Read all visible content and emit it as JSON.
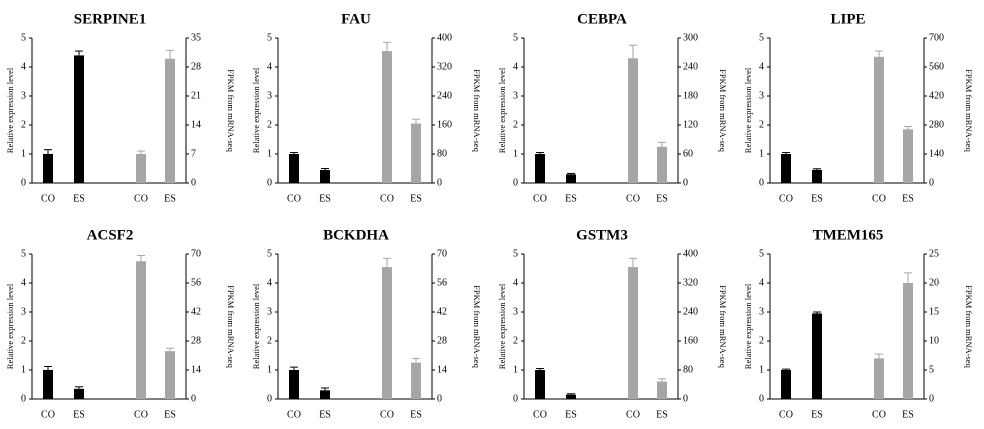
{
  "chart_data": [
    {
      "type": "bar",
      "title": "SERPINE1",
      "categories": [
        "CO",
        "ES",
        "CO",
        "ES"
      ],
      "ylabel": "Relative expression level",
      "y2label": "FPKM from mRNA-seq",
      "series": [
        {
          "color": "#000000",
          "values": [
            1.0,
            4.4,
            null,
            null
          ],
          "errors": [
            0.15,
            0.15,
            null,
            null
          ]
        },
        {
          "color": "#a6a6a6",
          "axis": "y2",
          "values": [
            null,
            null,
            7,
            30
          ],
          "errors": [
            null,
            null,
            0.7,
            2
          ]
        }
      ],
      "ylim": [
        0,
        5
      ],
      "yticks": [
        0,
        1,
        2,
        3,
        4,
        5
      ],
      "y2lim": [
        0,
        35
      ],
      "y2ticks": [
        0,
        7,
        14,
        21,
        28,
        35
      ]
    },
    {
      "type": "bar",
      "title": "FAU",
      "categories": [
        "CO",
        "ES",
        "CO",
        "ES"
      ],
      "ylabel": "Relative expression level",
      "y2label": "FPKM from mRNA-seq",
      "series": [
        {
          "color": "#000000",
          "values": [
            1.0,
            0.45,
            null,
            null
          ],
          "errors": [
            0.05,
            0.05,
            null,
            null
          ]
        },
        {
          "color": "#a6a6a6",
          "axis": "y2",
          "values": [
            null,
            null,
            364,
            164
          ],
          "errors": [
            null,
            null,
            24,
            12
          ]
        }
      ],
      "ylim": [
        0,
        5
      ],
      "yticks": [
        0,
        1,
        2,
        3,
        4,
        5
      ],
      "y2lim": [
        0,
        400
      ],
      "y2ticks": [
        0,
        80,
        160,
        240,
        320,
        400
      ]
    },
    {
      "type": "bar",
      "title": "CEBPA",
      "categories": [
        "CO",
        "ES",
        "CO",
        "ES"
      ],
      "ylabel": "Relative expression level",
      "y2label": "FPKM from mRNA-seq",
      "series": [
        {
          "color": "#000000",
          "values": [
            1.0,
            0.3,
            null,
            null
          ],
          "errors": [
            0.05,
            0.03,
            null,
            null
          ]
        },
        {
          "color": "#a6a6a6",
          "axis": "y2",
          "values": [
            null,
            null,
            258,
            75
          ],
          "errors": [
            null,
            null,
            27,
            9
          ]
        }
      ],
      "ylim": [
        0,
        5
      ],
      "yticks": [
        0,
        1,
        2,
        3,
        4,
        5
      ],
      "y2lim": [
        0,
        300
      ],
      "y2ticks": [
        0,
        60,
        120,
        180,
        240,
        300
      ]
    },
    {
      "type": "bar",
      "title": "LIPE",
      "categories": [
        "CO",
        "ES",
        "CO",
        "ES"
      ],
      "ylabel": "Relative expression level",
      "y2label": "FPKM from mRNA-seq",
      "series": [
        {
          "color": "#000000",
          "values": [
            1.0,
            0.45,
            null,
            null
          ],
          "errors": [
            0.05,
            0.04,
            null,
            null
          ]
        },
        {
          "color": "#a6a6a6",
          "axis": "y2",
          "values": [
            null,
            null,
            609,
            259
          ],
          "errors": [
            null,
            null,
            28,
            14
          ]
        }
      ],
      "ylim": [
        0,
        5
      ],
      "yticks": [
        0,
        1,
        2,
        3,
        4,
        5
      ],
      "y2lim": [
        0,
        700
      ],
      "y2ticks": [
        0,
        140,
        280,
        420,
        560,
        700
      ]
    },
    {
      "type": "bar",
      "title": "ACSF2",
      "categories": [
        "CO",
        "ES",
        "CO",
        "ES"
      ],
      "ylabel": "Relative expression level",
      "y2label": "FPKM from mRNA-seq",
      "series": [
        {
          "color": "#000000",
          "values": [
            1.0,
            0.35,
            null,
            null
          ],
          "errors": [
            0.12,
            0.07,
            null,
            null
          ]
        },
        {
          "color": "#a6a6a6",
          "axis": "y2",
          "values": [
            null,
            null,
            66.5,
            23.1
          ],
          "errors": [
            null,
            null,
            2.8,
            1.4
          ]
        }
      ],
      "ylim": [
        0,
        5
      ],
      "yticks": [
        0,
        1,
        2,
        3,
        4,
        5
      ],
      "y2lim": [
        0,
        70
      ],
      "y2ticks": [
        0,
        14,
        28,
        42,
        56,
        70
      ]
    },
    {
      "type": "bar",
      "title": "BCKDHA",
      "categories": [
        "CO",
        "ES",
        "CO",
        "ES"
      ],
      "ylabel": "Relative expression level",
      "y2label": "FPKM from mRNA-seq",
      "series": [
        {
          "color": "#000000",
          "values": [
            1.0,
            0.3,
            null,
            null
          ],
          "errors": [
            0.1,
            0.08,
            null,
            null
          ]
        },
        {
          "color": "#a6a6a6",
          "axis": "y2",
          "values": [
            null,
            null,
            63.7,
            17.5
          ],
          "errors": [
            null,
            null,
            4.2,
            2
          ]
        }
      ],
      "ylim": [
        0,
        5
      ],
      "yticks": [
        0,
        1,
        2,
        3,
        4,
        5
      ],
      "y2lim": [
        0,
        70
      ],
      "y2ticks": [
        0,
        14,
        28,
        42,
        56,
        70
      ]
    },
    {
      "type": "bar",
      "title": "GSTM3",
      "categories": [
        "CO",
        "ES",
        "CO",
        "ES"
      ],
      "ylabel": "Relative expression level",
      "y2label": "FPKM from mRNA-seq",
      "series": [
        {
          "color": "#000000",
          "values": [
            1.0,
            0.15,
            null,
            null
          ],
          "errors": [
            0.05,
            0.03,
            null,
            null
          ]
        },
        {
          "color": "#a6a6a6",
          "axis": "y2",
          "values": [
            null,
            null,
            364,
            48
          ],
          "errors": [
            null,
            null,
            24,
            8
          ]
        }
      ],
      "ylim": [
        0,
        5
      ],
      "yticks": [
        0,
        1,
        2,
        3,
        4,
        5
      ],
      "y2lim": [
        0,
        400
      ],
      "y2ticks": [
        0,
        80,
        160,
        240,
        320,
        400
      ]
    },
    {
      "type": "bar",
      "title": "TMEM165",
      "categories": [
        "CO",
        "ES",
        "CO",
        "ES"
      ],
      "ylabel": "Relative expression level",
      "y2label": "FPKM from mRNA-seq",
      "series": [
        {
          "color": "#000000",
          "values": [
            1.0,
            2.95,
            null,
            null
          ],
          "errors": [
            0.03,
            0.05,
            null,
            null
          ]
        },
        {
          "color": "#a6a6a6",
          "axis": "y2",
          "values": [
            null,
            null,
            7,
            20
          ],
          "errors": [
            null,
            null,
            0.75,
            1.75
          ]
        }
      ],
      "ylim": [
        0,
        5
      ],
      "yticks": [
        0,
        1,
        2,
        3,
        4,
        5
      ],
      "y2lim": [
        0,
        25
      ],
      "y2ticks": [
        0,
        5,
        10,
        15,
        20,
        25
      ]
    }
  ]
}
